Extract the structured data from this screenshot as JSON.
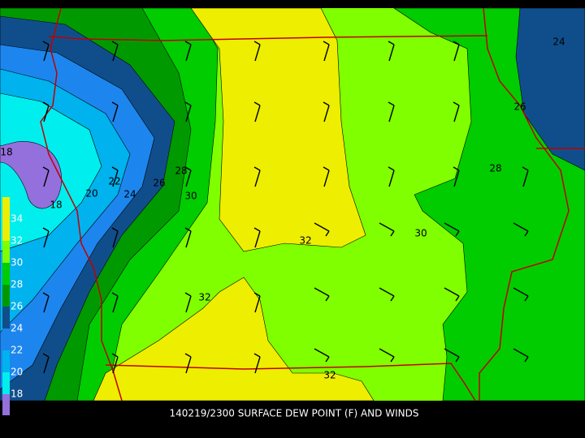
{
  "map": {
    "title": "140219/2300 SURFACE DEW POINT (F) AND WINDS",
    "contour_labels": [
      "24",
      "26",
      "28",
      "30",
      "32",
      "32",
      "32",
      "30",
      "28",
      "26",
      "24",
      "22",
      "20",
      "18",
      "18"
    ],
    "legend": [
      {
        "label": "34",
        "color": "#eeee00"
      },
      {
        "label": "32",
        "color": "#eeee00"
      },
      {
        "label": "30",
        "color": "#7fff00"
      },
      {
        "label": "28",
        "color": "#00cc00"
      },
      {
        "label": "26",
        "color": "#009a00"
      },
      {
        "label": "24",
        "color": "#104e8b"
      },
      {
        "label": "22",
        "color": "#1c86ee"
      },
      {
        "label": "20",
        "color": "#00b2ee"
      },
      {
        "label": "18",
        "color": "#00eeee"
      }
    ],
    "legend_bottom_color": "#9370db"
  }
}
